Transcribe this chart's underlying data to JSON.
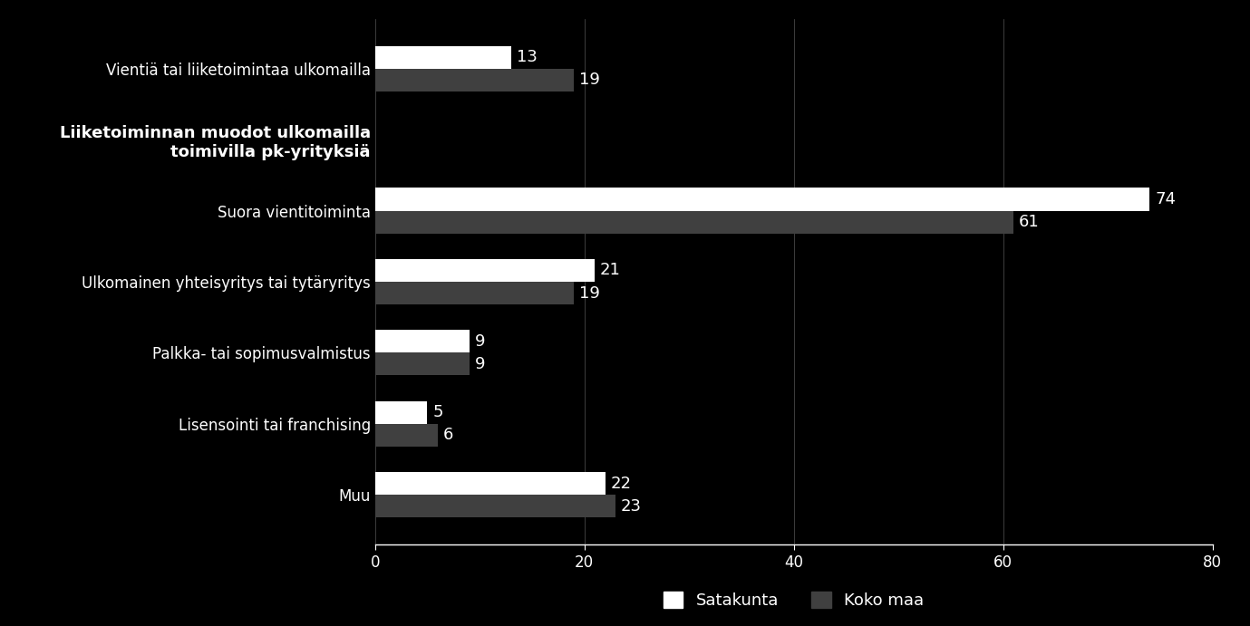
{
  "categories": [
    "Vientiä tai liiketoimintaa ulkomailla",
    "Liiketoiminnan muodot ulkomailla\ntoimivilla pk-yrityksiä",
    "Suora vientitoiminta",
    "Ulkomainen yhteisyritys tai tytäryritys",
    "Palkka- tai sopimusvalmistus",
    "Lisensointi tai franchising",
    "Muu"
  ],
  "satakunta": [
    13,
    null,
    74,
    21,
    9,
    5,
    22
  ],
  "koko_maa": [
    19,
    null,
    61,
    19,
    9,
    6,
    23
  ],
  "satakunta_color": "#ffffff",
  "koko_maa_color": "#404040",
  "background_color": "#000000",
  "text_color": "#ffffff",
  "bar_height": 0.32,
  "xlim": [
    0,
    80
  ],
  "xticks": [
    0,
    20,
    40,
    60,
    80
  ],
  "legend_satakunta": "Satakunta",
  "legend_koko_maa": "Koko maa",
  "bold_category_index": 1
}
